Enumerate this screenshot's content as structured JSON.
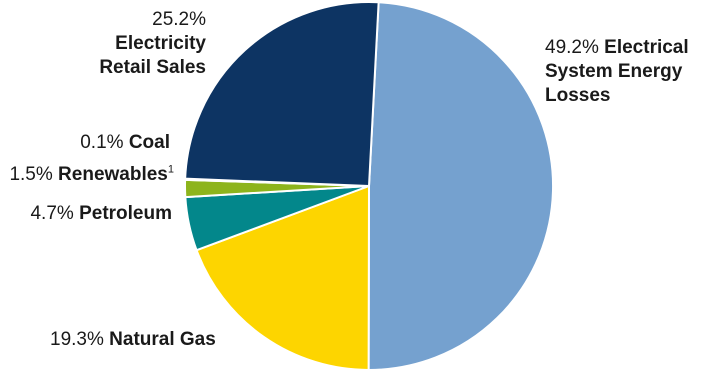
{
  "chart_data": {
    "type": "pie",
    "start_angle_deg": 3,
    "direction": "clockwise",
    "slices": [
      {
        "label": "Electrical System Energy Losses",
        "value": 49.2,
        "display_pct": "49.2%",
        "color": "#75a1cf"
      },
      {
        "label": "Natural Gas",
        "value": 19.3,
        "display_pct": "19.3%",
        "color": "#fdd500"
      },
      {
        "label": "Petroleum",
        "value": 4.7,
        "display_pct": "4.7%",
        "color": "#03878b"
      },
      {
        "label": "Renewables",
        "value": 1.5,
        "display_pct": "1.5%",
        "color": "#8db41c",
        "footnote": "1"
      },
      {
        "label": "Coal",
        "value": 0.1,
        "display_pct": "0.1%",
        "color": "#000000"
      },
      {
        "label": "Electricity Retail Sales",
        "value": 25.2,
        "display_pct": "25.2%",
        "color": "#0d3463"
      }
    ],
    "slice_border_color": "#ffffff"
  }
}
